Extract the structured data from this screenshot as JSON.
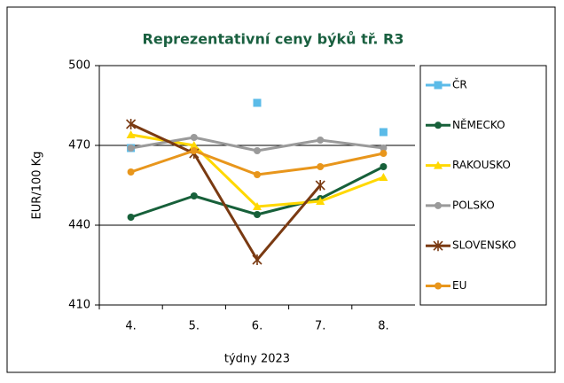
{
  "chart_data": {
    "type": "line",
    "title": "Reprezentativní  ceny býků tř. R3",
    "x_label": "týdny 2023",
    "y_label": "EUR/100 Kg",
    "categories": [
      "4.",
      "5.",
      "6.",
      "7.",
      "8."
    ],
    "ylim": [
      410,
      500
    ],
    "yticks": [
      410,
      440,
      470,
      500
    ],
    "grid": true,
    "legend": "right",
    "series": [
      {
        "name": "ČR",
        "color": "#5bbbe8",
        "marker": "square",
        "line": false,
        "values": [
          469,
          null,
          486,
          null,
          475
        ]
      },
      {
        "name": "NĚMECKO",
        "color": "#17603a",
        "marker": "circle",
        "line": true,
        "values": [
          443,
          451,
          444,
          450,
          462
        ]
      },
      {
        "name": "RAKOUSKO",
        "color": "#ffd800",
        "marker": "triangle",
        "line": true,
        "values": [
          474,
          470,
          447,
          449,
          458
        ]
      },
      {
        "name": "POLSKO",
        "color": "#9a9a9a",
        "marker": "circle",
        "line": true,
        "values": [
          469,
          473,
          468,
          472,
          469
        ]
      },
      {
        "name": "SLOVENSKO",
        "color": "#7a3a12",
        "marker": "star",
        "line": true,
        "values": [
          478,
          467,
          427,
          455,
          null
        ]
      },
      {
        "name": "EU",
        "color": "#e8961c",
        "marker": "circle",
        "line": true,
        "values": [
          460,
          468,
          459,
          462,
          467
        ]
      }
    ]
  }
}
